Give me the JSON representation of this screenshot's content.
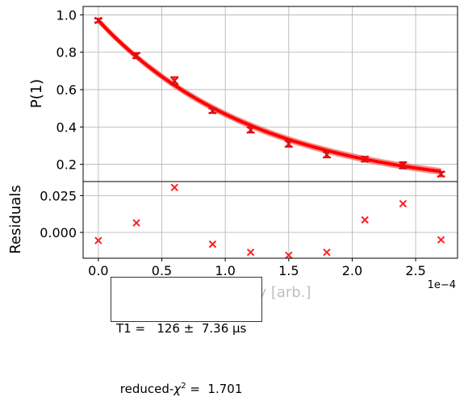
{
  "chart_data": [
    {
      "type": "scatter",
      "panel": "main",
      "ylabel": "P(1)",
      "xlabel": "Delay [arb.]",
      "x_scale_note": "1e−4",
      "xlim": [
        -1.2e-05,
        0.000283
      ],
      "ylim": [
        0.108,
        1.045
      ],
      "grid": true,
      "x": [
        0.0,
        3e-05,
        6e-05,
        9e-05,
        0.00012,
        0.00015,
        0.00018,
        0.00021,
        0.00024,
        0.00027
      ],
      "y": [
        0.97,
        0.782,
        0.647,
        0.487,
        0.384,
        0.31,
        0.252,
        0.228,
        0.195,
        0.148
      ],
      "yerr": [
        0.01,
        0.014,
        0.02,
        0.012,
        0.014,
        0.016,
        0.015,
        0.013,
        0.017,
        0.012
      ],
      "xticks": [
        "0.0",
        "0.5",
        "1.0",
        "1.5",
        "2.0",
        "2.5"
      ],
      "xtick_values": [
        0.0,
        5e-05,
        0.0001,
        0.00015,
        0.0002,
        0.00025
      ],
      "yticks": [
        "0.2",
        "0.4",
        "0.6",
        "0.8",
        "1.0"
      ],
      "ytick_values": [
        0.2,
        0.4,
        0.6,
        0.8,
        1.0
      ],
      "fit": {
        "model": "exponential decay",
        "A": 0.915,
        "T1": 0.000126,
        "C": 0.055,
        "band": 0.018
      },
      "color": "#ff0000"
    },
    {
      "type": "scatter",
      "panel": "residuals",
      "ylabel": "Residuals",
      "ylim": [
        -0.0175,
        0.0345
      ],
      "grid": true,
      "x": [
        0.0,
        3e-05,
        6e-05,
        9e-05,
        0.00012,
        0.00015,
        0.00018,
        0.00021,
        0.00024,
        0.00027
      ],
      "y": [
        -0.0055,
        0.0065,
        0.0305,
        -0.008,
        -0.0135,
        -0.0155,
        -0.0135,
        0.0085,
        0.0195,
        -0.005
      ],
      "yticks": [
        "0.000",
        "0.025"
      ],
      "ytick_values": [
        0.0,
        0.025
      ],
      "color": "#ff2020"
    }
  ],
  "fit_box": {
    "line1": "T1 =   126 ±  7.36 μs",
    "line2_prefix": "reduced-",
    "chi_symbol": "χ",
    "chi_exp": "2",
    "line2_suffix": " =  1.701"
  }
}
